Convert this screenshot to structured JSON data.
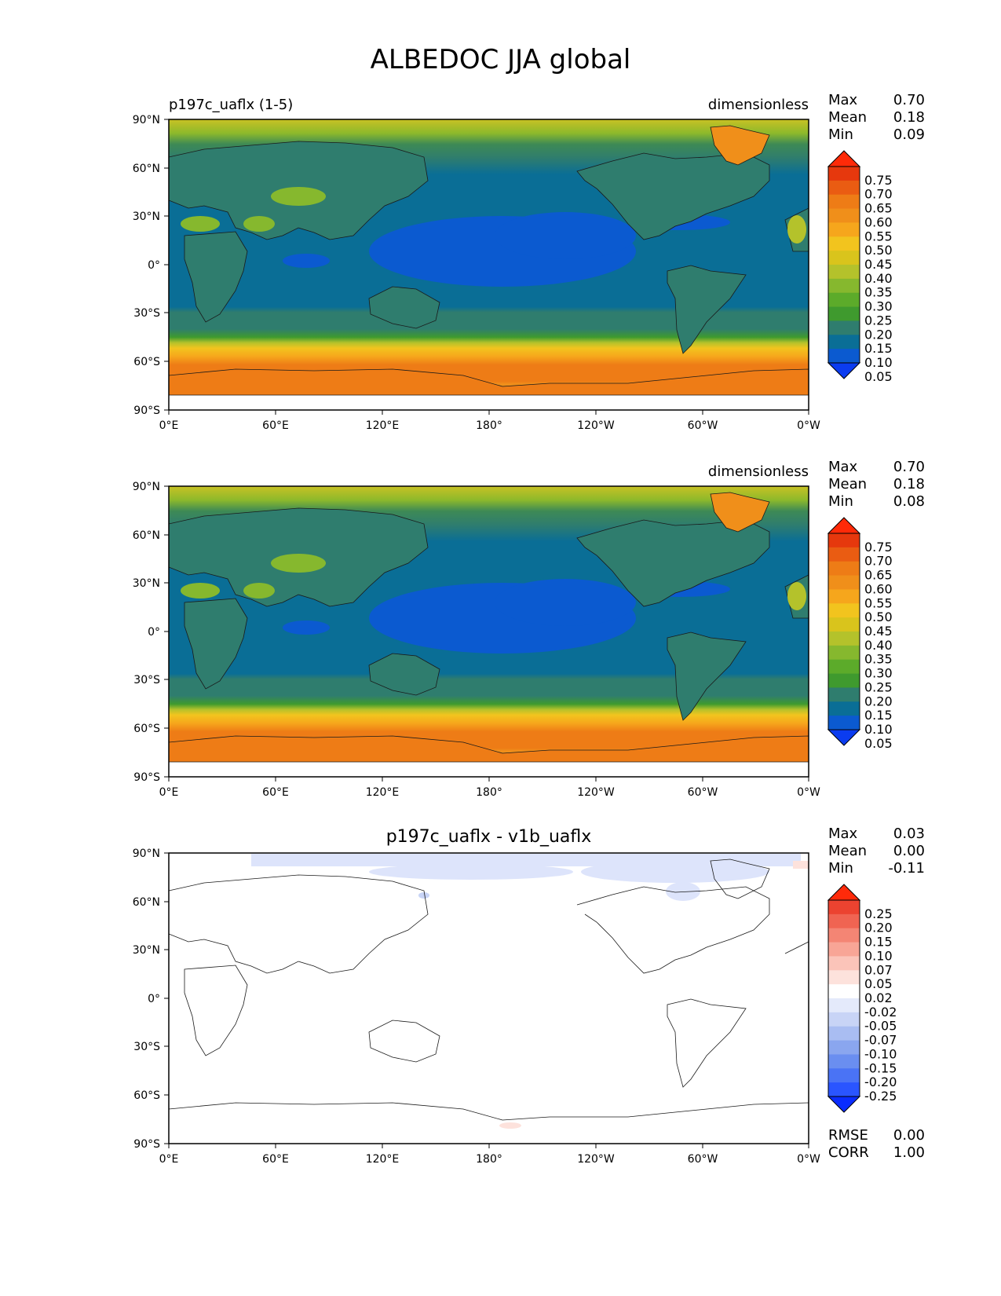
{
  "figure": {
    "title": "ALBEDOC JJA global"
  },
  "colors": {
    "model_levels": [
      "#0b3cf0",
      "#0b5ad0",
      "#0a6e96",
      "#2f7d6e",
      "#3f9a2e",
      "#5cab2a",
      "#86b82e",
      "#b4c22b",
      "#d9c41c",
      "#f2c41e",
      "#f6a61c",
      "#f08f1a",
      "#ee7c16",
      "#ea5c12",
      "#e6380d",
      "#ff2a08"
    ],
    "diff_levels": [
      "#0a2cff",
      "#2a55ff",
      "#4a73f5",
      "#6a8ef0",
      "#8aa6ef",
      "#a9bdf2",
      "#c8d4f6",
      "#e4eafb",
      "#ffffff",
      "#fde2dc",
      "#fbc4b9",
      "#f8a596",
      "#f48574",
      "#f06452",
      "#ec4330",
      "#ff2a0a"
    ]
  },
  "lat_ticks": [
    "90°N",
    "60°N",
    "30°N",
    "0°",
    "30°S",
    "60°S",
    "90°S"
  ],
  "lon_ticks": [
    "0°E",
    "60°E",
    "120°E",
    "180°",
    "120°W",
    "60°W",
    "0°W"
  ],
  "panels": [
    {
      "left_title": "p197c_uaflx (1-5)",
      "center_title": "",
      "right_title": "dimensionless",
      "stats": [
        {
          "key": "Max",
          "value": "0.70"
        },
        {
          "key": "Mean",
          "value": "0.18"
        },
        {
          "key": "Min",
          "value": "0.09"
        }
      ],
      "colorbar_ticks": [
        "0.75",
        "0.70",
        "0.65",
        "0.60",
        "0.55",
        "0.50",
        "0.45",
        "0.40",
        "0.35",
        "0.30",
        "0.25",
        "0.20",
        "0.15",
        "0.10",
        "0.05"
      ],
      "extra_stats": []
    },
    {
      "left_title": "",
      "center_title": "",
      "right_title": "dimensionless",
      "stats": [
        {
          "key": "Max",
          "value": "0.70"
        },
        {
          "key": "Mean",
          "value": "0.18"
        },
        {
          "key": "Min",
          "value": "0.08"
        }
      ],
      "colorbar_ticks": [
        "0.75",
        "0.70",
        "0.65",
        "0.60",
        "0.55",
        "0.50",
        "0.45",
        "0.40",
        "0.35",
        "0.30",
        "0.25",
        "0.20",
        "0.15",
        "0.10",
        "0.05"
      ],
      "extra_stats": []
    },
    {
      "left_title": "",
      "center_title": "p197c_uaflx - v1b_uaflx",
      "right_title": "",
      "stats": [
        {
          "key": "Max",
          "value": "0.03"
        },
        {
          "key": "Mean",
          "value": "0.00"
        },
        {
          "key": "Min",
          "value": "-0.11"
        }
      ],
      "colorbar_ticks": [
        "0.25",
        "0.20",
        "0.15",
        "0.10",
        "0.07",
        "0.05",
        "0.02",
        "-0.02",
        "-0.05",
        "-0.07",
        "-0.10",
        "-0.15",
        "-0.20",
        "-0.25"
      ],
      "extra_stats": [
        {
          "key": "RMSE",
          "value": "0.00"
        },
        {
          "key": "CORR",
          "value": "1.00"
        }
      ]
    }
  ]
}
